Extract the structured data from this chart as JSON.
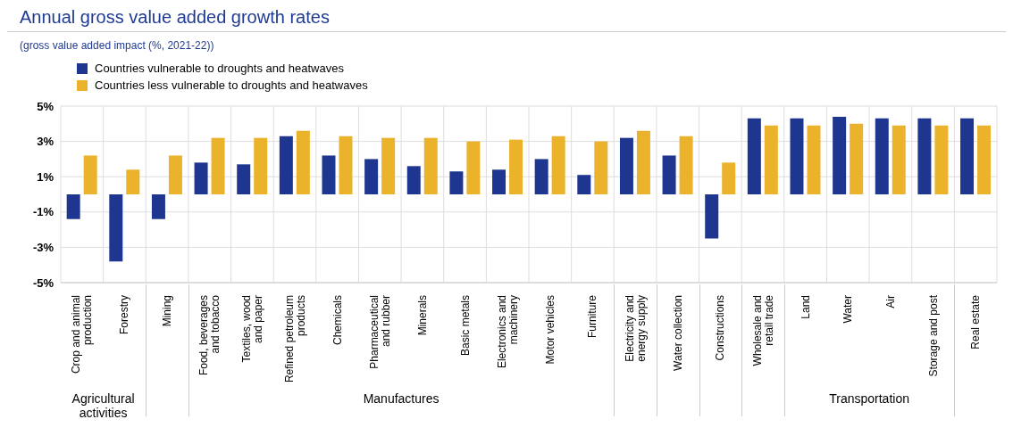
{
  "chart_data": {
    "type": "bar",
    "title": "Annual gross value added growth rates",
    "subtitle": "(gross value added impact (%, 2021-22))",
    "categories": [
      "Crop and animal production",
      "Forestry",
      "Mining",
      "Food, beverages and tobacco",
      "Textiles, wood and paper",
      "Refined petroleum products",
      "Chemicals",
      "Pharmaceutical and rubber",
      "Minerals",
      "Basic metals",
      "Electronics and machinery",
      "Motor vehicles",
      "Furniture",
      "Electricity and energy supply",
      "Water collection",
      "Constructions",
      "Wholesale and retail trade",
      "Land",
      "Water",
      "Air",
      "Storage and post",
      "Real estate"
    ],
    "series": [
      {
        "name": "Countries vulnerable to droughts and heatwaves",
        "color": "#1f3690",
        "values": [
          -1.4,
          -3.8,
          -1.4,
          1.8,
          1.7,
          3.3,
          2.2,
          2.0,
          1.6,
          1.3,
          1.4,
          2.0,
          1.1,
          3.2,
          2.2,
          -2.5,
          4.3,
          4.3,
          4.4,
          4.3,
          4.3,
          4.3
        ]
      },
      {
        "name": "Countries less vulnerable to droughts and heatwaves",
        "color": "#ebb22c",
        "values": [
          2.2,
          1.4,
          2.2,
          3.2,
          3.2,
          3.6,
          3.3,
          3.2,
          3.2,
          3.0,
          3.1,
          3.3,
          3.0,
          3.6,
          3.3,
          1.8,
          3.9,
          3.9,
          4.0,
          3.9,
          3.9,
          3.9
        ]
      }
    ],
    "ylim": [
      -5,
      5
    ],
    "yticks": [
      {
        "value": -5,
        "label": "-5%"
      },
      {
        "value": -3,
        "label": "-3%"
      },
      {
        "value": -1,
        "label": "-1%"
      },
      {
        "value": 1,
        "label": "1%"
      },
      {
        "value": 3,
        "label": "3%"
      },
      {
        "value": 5,
        "label": "5%"
      }
    ],
    "grid": true,
    "legend": "top left",
    "annotations": [
      "Agricultural activities",
      "Manufactures",
      "Transportation"
    ]
  }
}
